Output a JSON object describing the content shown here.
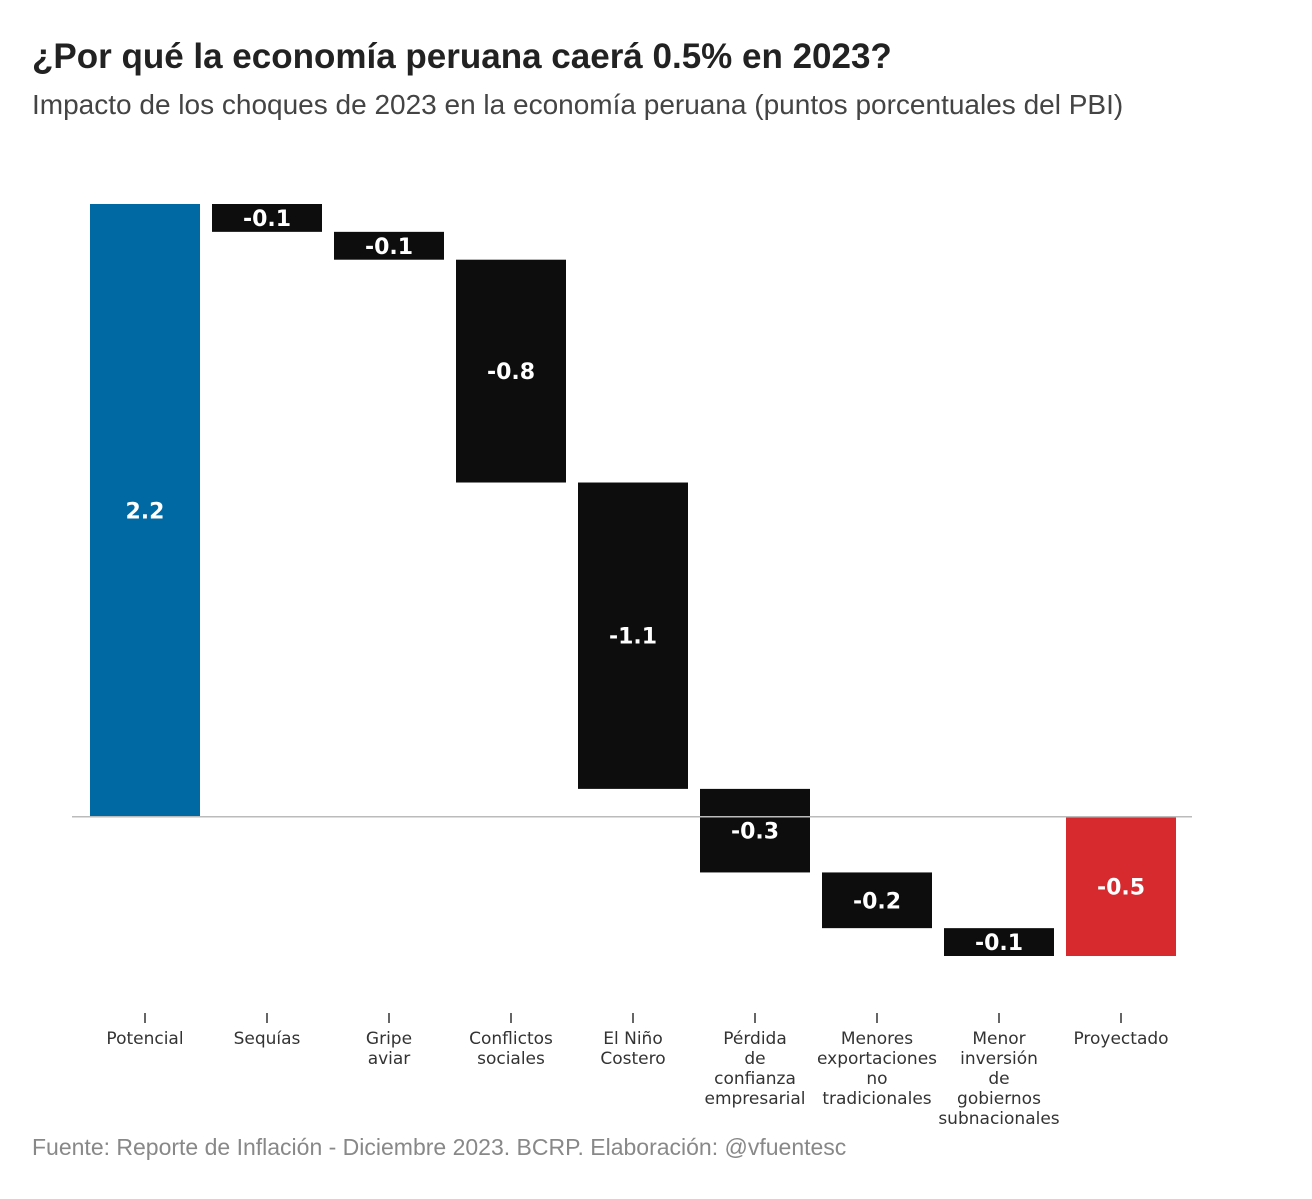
{
  "chart_data": {
    "type": "waterfall",
    "title": "¿Por qué la economía peruana caerá 0.5% en 2023?",
    "subtitle": "Impacto de los choques de 2023 en la economía peruana (puntos porcentuales del PBI)",
    "source": "Fuente: Reporte de Inflación - Diciembre 2023. BCRP. Elaboración: @vfuentesc",
    "categories": [
      "Potencial",
      "Sequías",
      "Gripe\naviar",
      "Conflictos\nsociales",
      "El Niño\nCostero",
      "Pérdida\nde\nconfianza\nempresarial",
      "Menores\nexportaciones\nno\ntradicionales",
      "Menor\ninversión\nde\ngobiernos\nsubnacionales",
      "Proyectado"
    ],
    "values": [
      2.2,
      -0.1,
      -0.1,
      -0.8,
      -1.1,
      -0.3,
      -0.2,
      -0.1,
      -0.5
    ],
    "kinds": [
      "total",
      "delta",
      "delta",
      "delta",
      "delta",
      "delta",
      "delta",
      "delta",
      "total"
    ],
    "colors": [
      "#0069a3",
      "#0d0d0d",
      "#0d0d0d",
      "#0d0d0d",
      "#0d0d0d",
      "#0d0d0d",
      "#0d0d0d",
      "#0d0d0d",
      "#d62a2e"
    ],
    "ylim": [
      -0.5,
      2.2
    ]
  }
}
